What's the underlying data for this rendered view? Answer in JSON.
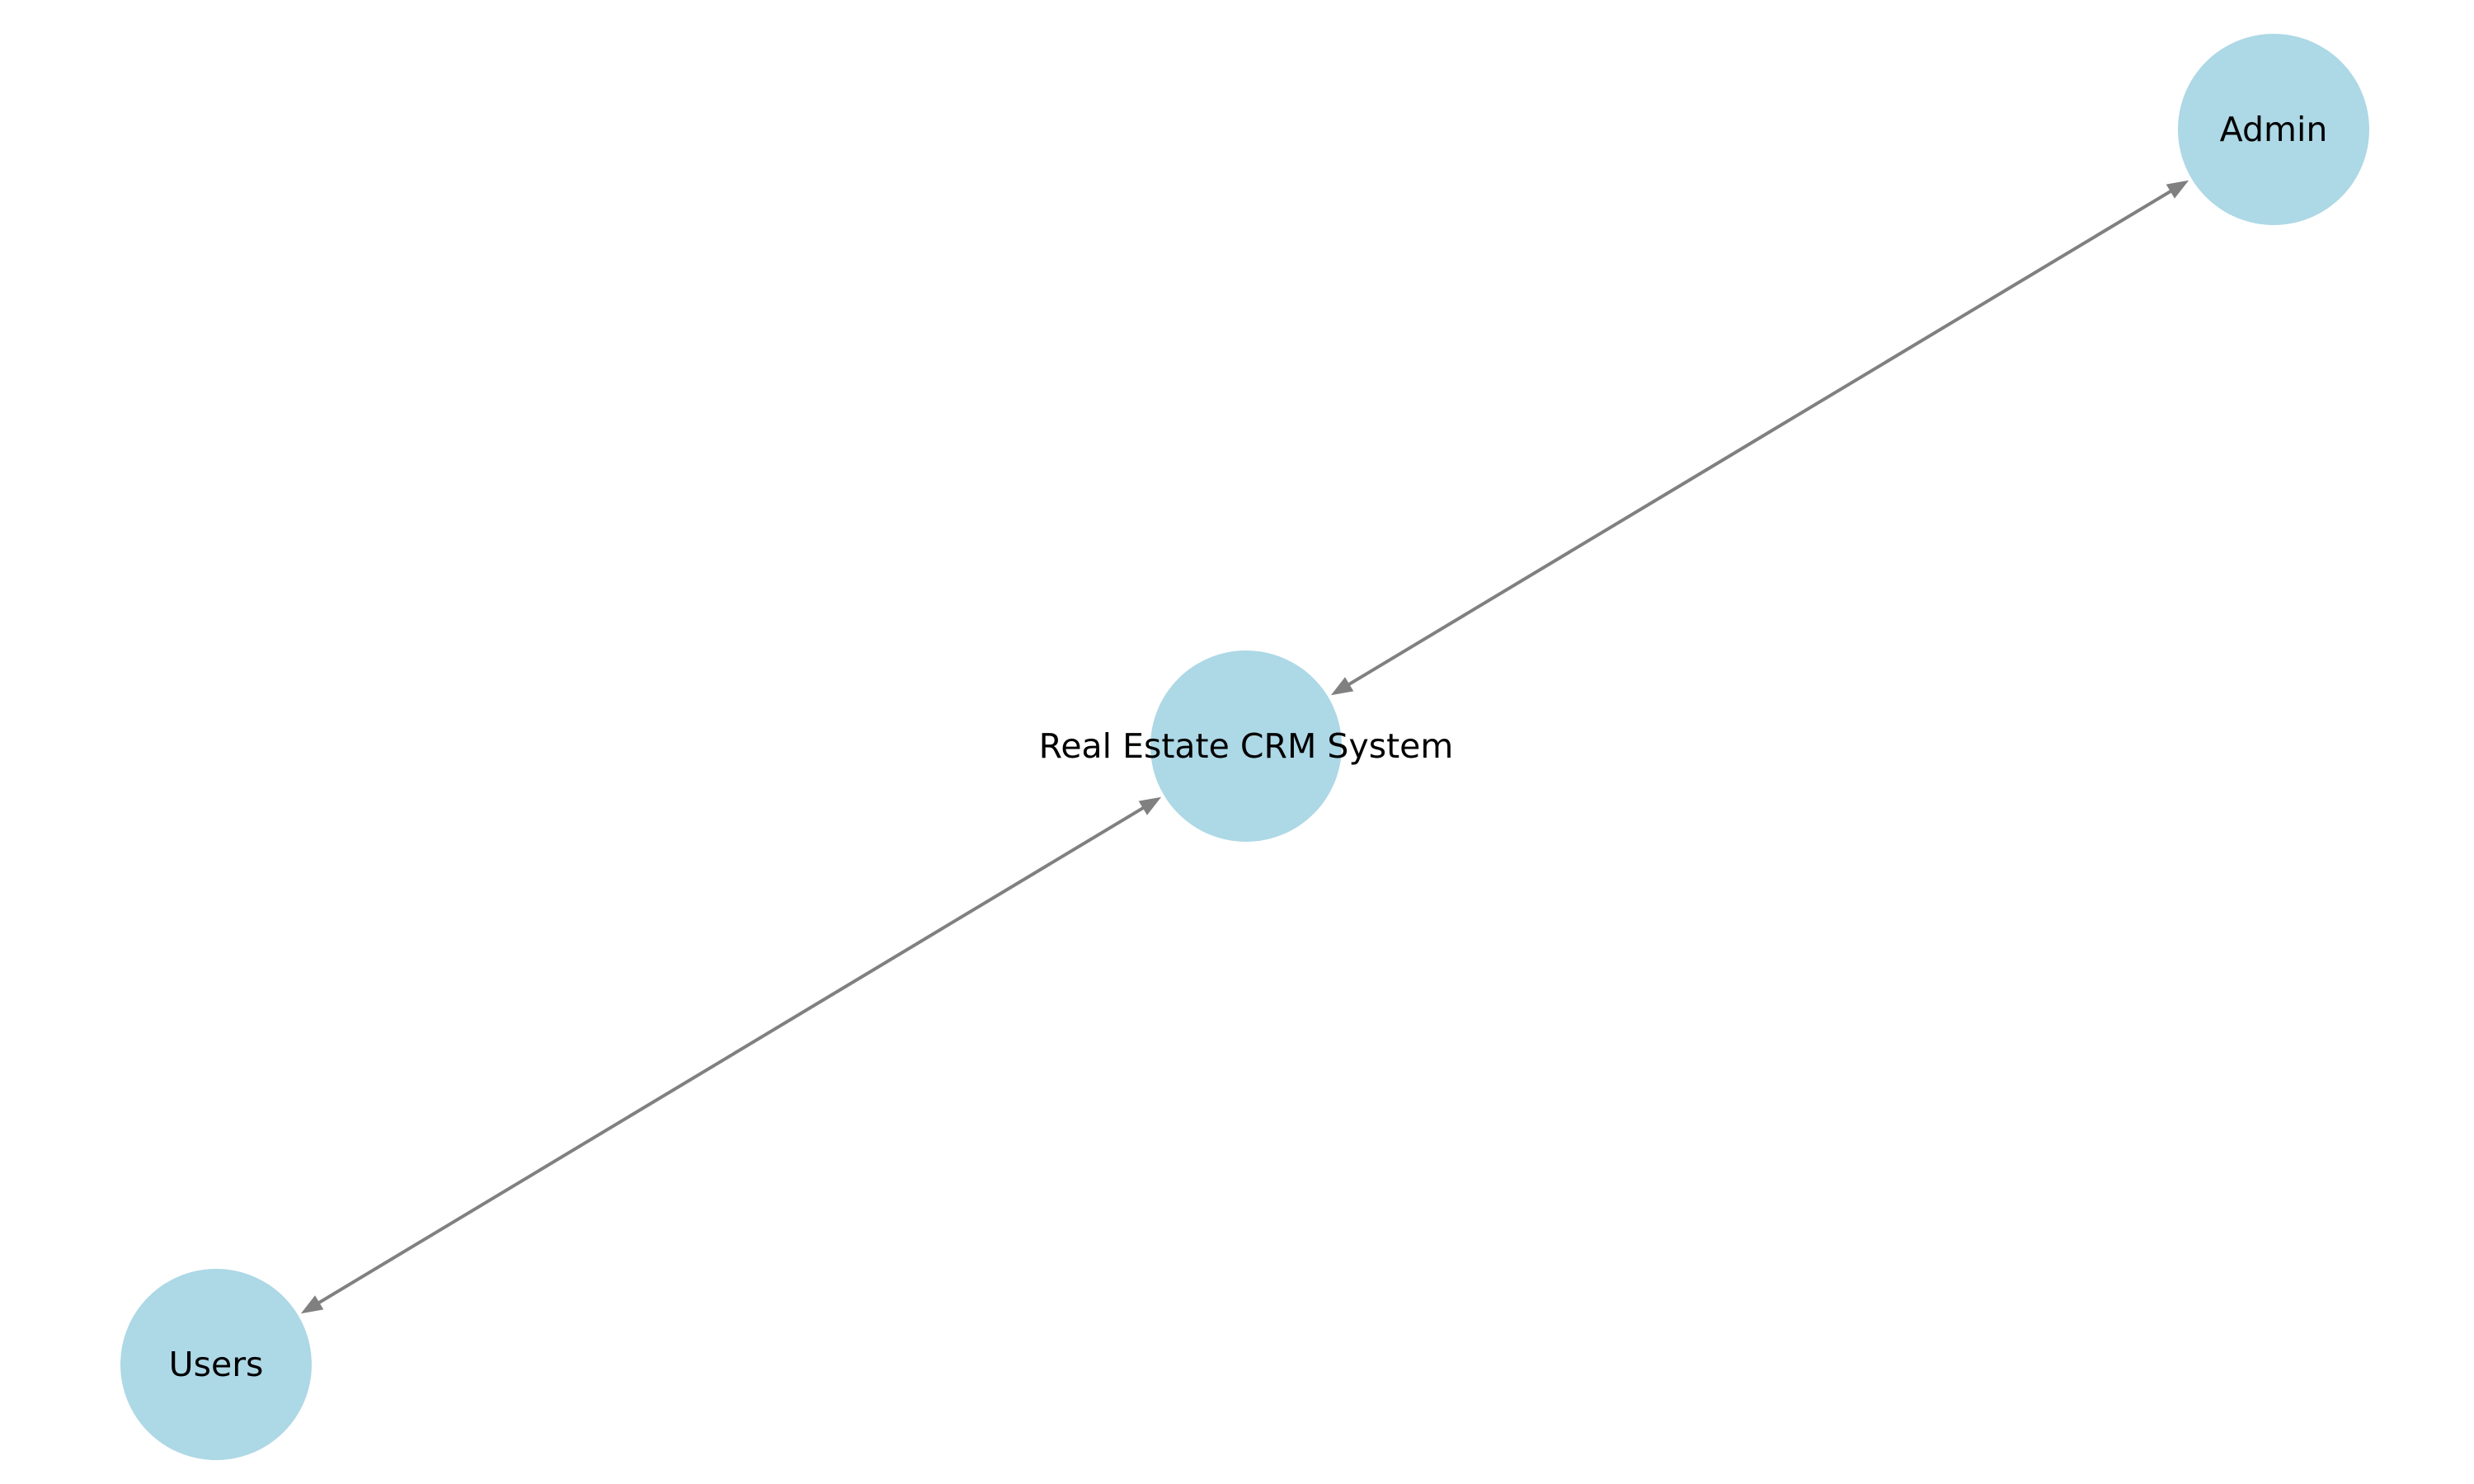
{
  "diagram": {
    "type": "graph",
    "node_color": "#add8e6",
    "edge_color": "#808080",
    "nodes": [
      {
        "id": "system",
        "label": "Real Estate CRM System"
      },
      {
        "id": "admin",
        "label": "Admin"
      },
      {
        "id": "users",
        "label": "Users"
      }
    ],
    "edges": [
      {
        "from": "admin",
        "to": "system",
        "direction": "both"
      },
      {
        "from": "system",
        "to": "users",
        "direction": "both"
      }
    ]
  }
}
